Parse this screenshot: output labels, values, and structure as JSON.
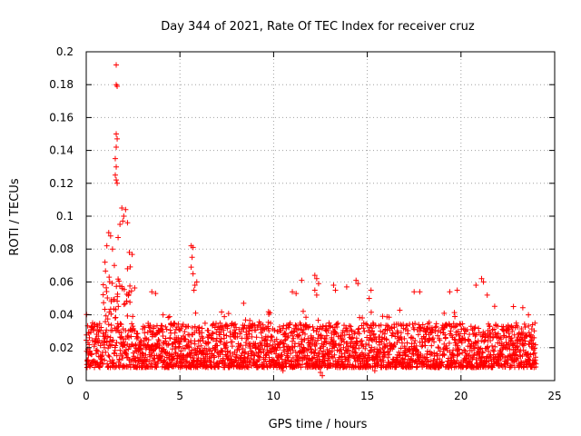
{
  "chart_data": {
    "type": "scatter",
    "title": "Day 344 of 2021, Rate Of TEC Index for receiver cruz",
    "xlabel": "GPS time / hours",
    "ylabel": "ROTI / TECUs",
    "xlim": [
      0,
      25
    ],
    "ylim": [
      0,
      0.2
    ],
    "xticks": [
      0,
      5,
      10,
      15,
      20,
      25
    ],
    "xtick_labels": [
      "0",
      "5",
      "10",
      "15",
      "20",
      "25"
    ],
    "yticks": [
      0,
      0.02,
      0.04,
      0.06,
      0.08,
      0.1,
      0.12,
      0.14,
      0.16,
      0.18,
      0.2
    ],
    "ytick_labels": [
      "0",
      "0.02",
      "0.04",
      "0.06",
      "0.08",
      "0.1",
      "0.12",
      "0.14",
      "0.16",
      "0.18",
      "0.2"
    ],
    "grid": true,
    "marker": "+",
    "color": "#ff0000",
    "x_range_data": [
      0,
      24
    ],
    "baseline_band": [
      0.008,
      0.035
    ],
    "series": [
      {
        "name": "ROTI",
        "notable_points": [
          {
            "x": 1.6,
            "y": 0.192
          },
          {
            "x": 1.6,
            "y": 0.18
          },
          {
            "x": 1.65,
            "y": 0.179
          },
          {
            "x": 1.6,
            "y": 0.15
          },
          {
            "x": 1.65,
            "y": 0.147
          },
          {
            "x": 1.6,
            "y": 0.142
          },
          {
            "x": 1.55,
            "y": 0.135
          },
          {
            "x": 1.6,
            "y": 0.13
          },
          {
            "x": 1.55,
            "y": 0.125
          },
          {
            "x": 1.6,
            "y": 0.122
          },
          {
            "x": 1.65,
            "y": 0.12
          },
          {
            "x": 1.9,
            "y": 0.105
          },
          {
            "x": 2.1,
            "y": 0.104
          },
          {
            "x": 2.0,
            "y": 0.1
          },
          {
            "x": 1.95,
            "y": 0.097
          },
          {
            "x": 2.2,
            "y": 0.096
          },
          {
            "x": 1.8,
            "y": 0.095
          },
          {
            "x": 1.2,
            "y": 0.09
          },
          {
            "x": 1.3,
            "y": 0.088
          },
          {
            "x": 1.7,
            "y": 0.087
          },
          {
            "x": 1.1,
            "y": 0.082
          },
          {
            "x": 1.4,
            "y": 0.08
          },
          {
            "x": 2.3,
            "y": 0.078
          },
          {
            "x": 1.0,
            "y": 0.072
          },
          {
            "x": 1.5,
            "y": 0.07
          },
          {
            "x": 2.2,
            "y": 0.068
          },
          {
            "x": 5.6,
            "y": 0.082
          },
          {
            "x": 5.7,
            "y": 0.081
          },
          {
            "x": 5.65,
            "y": 0.075
          },
          {
            "x": 5.6,
            "y": 0.069
          },
          {
            "x": 5.7,
            "y": 0.065
          },
          {
            "x": 5.9,
            "y": 0.06
          },
          {
            "x": 5.8,
            "y": 0.058
          },
          {
            "x": 5.75,
            "y": 0.055
          },
          {
            "x": 3.5,
            "y": 0.054
          },
          {
            "x": 3.7,
            "y": 0.053
          },
          {
            "x": 4.1,
            "y": 0.04
          },
          {
            "x": 11.5,
            "y": 0.061
          },
          {
            "x": 12.2,
            "y": 0.064
          },
          {
            "x": 12.3,
            "y": 0.062
          },
          {
            "x": 12.4,
            "y": 0.059
          },
          {
            "x": 12.2,
            "y": 0.055
          },
          {
            "x": 12.3,
            "y": 0.052
          },
          {
            "x": 11.0,
            "y": 0.054
          },
          {
            "x": 13.2,
            "y": 0.058
          },
          {
            "x": 13.3,
            "y": 0.055
          },
          {
            "x": 13.9,
            "y": 0.057
          },
          {
            "x": 14.4,
            "y": 0.061
          },
          {
            "x": 14.5,
            "y": 0.059
          },
          {
            "x": 15.2,
            "y": 0.055
          },
          {
            "x": 15.1,
            "y": 0.05
          },
          {
            "x": 17.5,
            "y": 0.054
          },
          {
            "x": 17.8,
            "y": 0.054
          },
          {
            "x": 19.4,
            "y": 0.054
          },
          {
            "x": 19.8,
            "y": 0.055
          },
          {
            "x": 20.8,
            "y": 0.058
          },
          {
            "x": 21.1,
            "y": 0.062
          },
          {
            "x": 21.2,
            "y": 0.06
          },
          {
            "x": 21.4,
            "y": 0.052
          },
          {
            "x": 8.4,
            "y": 0.047
          },
          {
            "x": 11.2,
            "y": 0.053
          },
          {
            "x": 22.8,
            "y": 0.045
          },
          {
            "x": 23.6,
            "y": 0.04
          },
          {
            "x": 12.5,
            "y": 0.005
          },
          {
            "x": 12.6,
            "y": 0.003
          },
          {
            "x": 15.4,
            "y": 0.006
          },
          {
            "x": 10.5,
            "y": 0.006
          },
          {
            "x": 23.9,
            "y": 0.008
          }
        ]
      }
    ]
  }
}
